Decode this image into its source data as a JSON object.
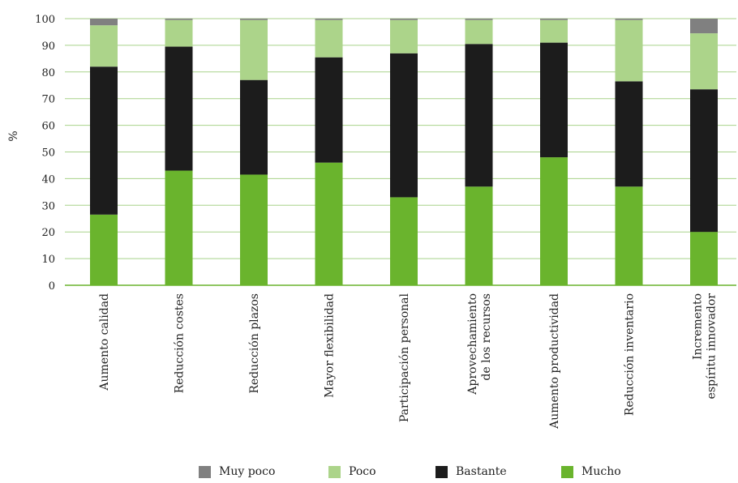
{
  "chart_data": {
    "type": "bar",
    "stacked": true,
    "ylabel": "%",
    "ylim": [
      0,
      100
    ],
    "yticks": [
      0,
      10,
      20,
      30,
      40,
      50,
      60,
      70,
      80,
      90,
      100
    ],
    "grid": true,
    "legend_position": "bottom",
    "categories": [
      [
        "Aumento calidad"
      ],
      [
        "Reducción costes"
      ],
      [
        "Reducción plazos"
      ],
      [
        "Mayor flexibilidad"
      ],
      [
        "Participación personal"
      ],
      [
        "Aprovechamiento",
        "de los recursos"
      ],
      [
        "Aumento productividad"
      ],
      [
        "Reducción inventario"
      ],
      [
        "Incremento",
        "espíritu innovador"
      ]
    ],
    "series": [
      {
        "name": "Mucho",
        "color": "#6ab42d",
        "values": [
          26.5,
          43,
          41.5,
          46,
          33,
          37,
          48,
          37,
          20
        ]
      },
      {
        "name": "Bastante",
        "color": "#1c1c1c",
        "values": [
          55.5,
          46.5,
          35.5,
          39.5,
          54,
          53.5,
          43,
          39.5,
          53.5
        ]
      },
      {
        "name": "Poco",
        "color": "#acd48a",
        "values": [
          15.5,
          10,
          22.5,
          14,
          12.5,
          9,
          8.5,
          23,
          21
        ]
      },
      {
        "name": "Muy poco",
        "color": "#808080",
        "values": [
          2.5,
          0.5,
          0.5,
          0.5,
          0.5,
          0.5,
          0.5,
          0.5,
          5.5
        ]
      }
    ]
  },
  "legend": [
    {
      "label": "Muy poco",
      "color": "#808080"
    },
    {
      "label": "Poco",
      "color": "#acd48a"
    },
    {
      "label": "Bastante",
      "color": "#1c1c1c"
    },
    {
      "label": "Mucho",
      "color": "#6ab42d"
    }
  ]
}
